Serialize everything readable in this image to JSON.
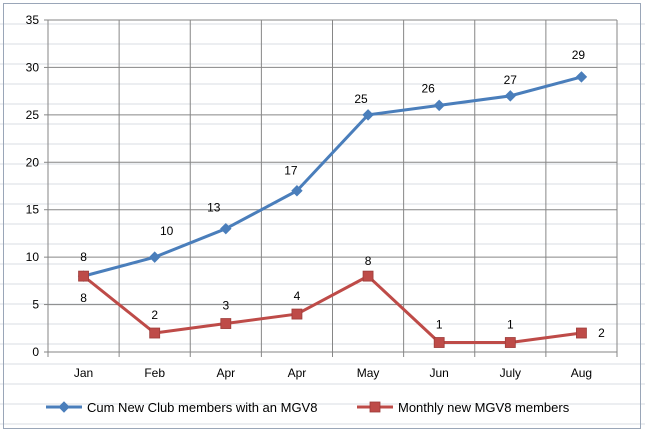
{
  "chart_data": {
    "type": "line",
    "categories": [
      "Jan",
      "Feb",
      "Apr",
      "Apr",
      "May",
      "Jun",
      "July",
      "Aug"
    ],
    "ylim": [
      0,
      35
    ],
    "y_ticks": [
      0,
      5,
      10,
      15,
      20,
      25,
      30,
      35
    ],
    "grid": true,
    "legend_position": "bottom",
    "series": [
      {
        "name": "Cum New Club members with an MGV8",
        "values": [
          8,
          10,
          13,
          17,
          25,
          26,
          27,
          29
        ],
        "color": "#4a7ebb",
        "marker": "diamond",
        "label_position": "above"
      },
      {
        "name": "Monthly new MGV8 members",
        "values": [
          8,
          2,
          3,
          4,
          8,
          1,
          1,
          2
        ],
        "color": "#be4b48",
        "marker": "square",
        "label_position": "mixed"
      }
    ]
  }
}
